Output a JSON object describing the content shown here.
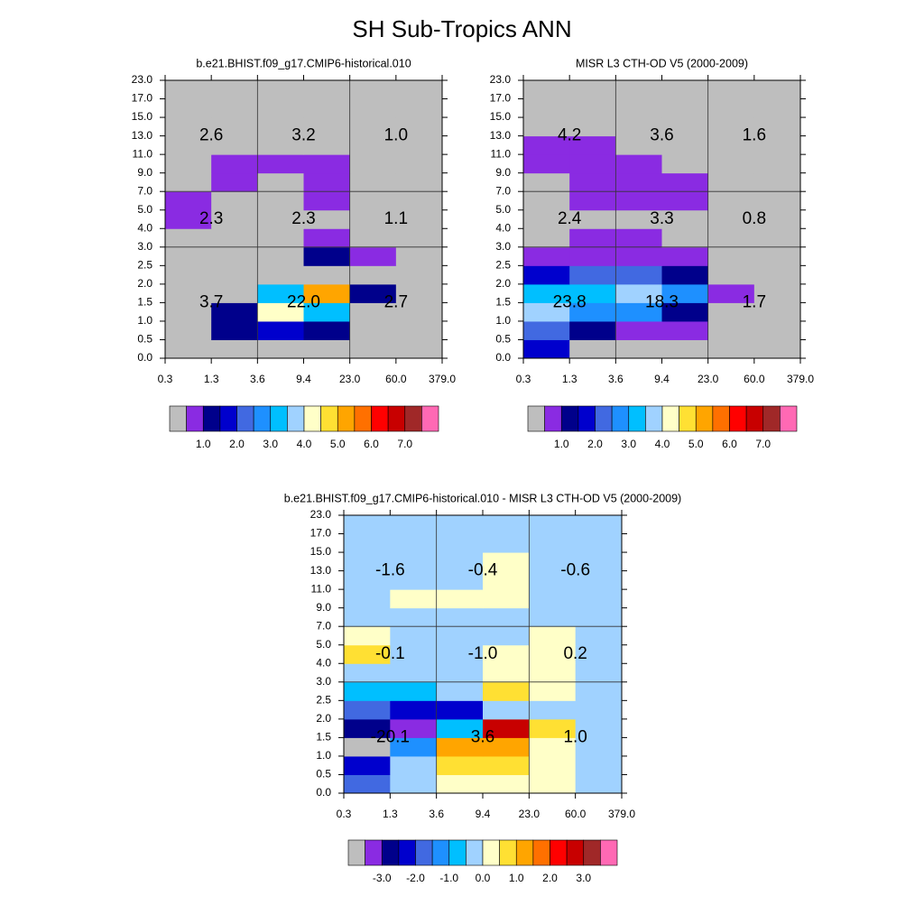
{
  "title": "SH Sub-Tropics ANN",
  "chart_data": [
    {
      "type": "heatmap",
      "title": "b.e21.BHIST.f09_g17.CMIP6-historical.010",
      "x_bins": [
        0.3,
        1.3,
        3.6,
        9.4,
        {
          "value": 23,
          "label": "23.0"
        },
        {
          "value": 60,
          "label": "60.0"
        },
        {
          "value": 379,
          "label": "379.0"
        }
      ],
      "y_bins": [
        {
          "value": 0,
          "label": "0.0"
        },
        0.5,
        {
          "value": 1,
          "label": "1.0"
        },
        1.5,
        {
          "value": 2,
          "label": "2.0"
        },
        2.5,
        {
          "value": 3,
          "label": "3.0"
        },
        {
          "value": 4,
          "label": "4.0"
        },
        {
          "value": 5,
          "label": "5.0"
        },
        {
          "value": 7,
          "label": "7.0"
        },
        {
          "value": 9,
          "label": "9.0"
        },
        {
          "value": 11,
          "label": "11.0"
        },
        {
          "value": 13,
          "label": "13.0"
        },
        {
          "value": 15,
          "label": "15.0"
        },
        {
          "value": 17,
          "label": "17.0"
        },
        {
          "value": 23,
          "label": "23.0"
        }
      ],
      "values": [
        [
          0.2,
          0.2,
          0.2,
          0.2,
          0.2,
          0.2
        ],
        [
          0.2,
          1.2,
          1.7,
          1.2,
          0.2,
          0.2
        ],
        [
          0.2,
          1.2,
          4.2,
          3.2,
          0.2,
          0.2
        ],
        [
          0.2,
          0.2,
          3.2,
          5.2,
          1.2,
          0.2
        ],
        [
          0.2,
          0.2,
          0.2,
          0.2,
          0.2,
          0.2
        ],
        [
          0.2,
          0.2,
          0.2,
          1.2,
          0.7,
          0.2
        ],
        [
          0.2,
          0.2,
          0.2,
          0.7,
          0.2,
          0.2
        ],
        [
          0.7,
          0.2,
          0.2,
          0.2,
          0.2,
          0.2
        ],
        [
          0.7,
          0.2,
          0.2,
          0.7,
          0.2,
          0.2
        ],
        [
          0.2,
          0.7,
          0.2,
          0.7,
          0.2,
          0.2
        ],
        [
          0.2,
          0.7,
          0.7,
          0.7,
          0.2,
          0.2
        ],
        [
          0.2,
          0.2,
          0.2,
          0.2,
          0.2,
          0.2
        ],
        [
          0.2,
          0.2,
          0.2,
          0.2,
          0.2,
          0.2
        ],
        [
          0.2,
          0.2,
          0.2,
          0.2,
          0.2,
          0.2
        ],
        [
          0.2,
          0.2,
          0.2,
          0.2,
          0.2,
          0.2
        ]
      ],
      "totals": [
        [
          "2.6",
          "3.2",
          "1.0"
        ],
        [
          "2.3",
          "2.3",
          "1.1"
        ],
        [
          "3.7",
          "22.0",
          "2.7"
        ]
      ],
      "colorbar": {
        "levels": [
          0.5,
          1,
          1.5,
          2,
          2.5,
          3,
          3.5,
          4,
          4.5,
          5,
          5.5,
          6,
          6.5,
          7,
          7.5
        ],
        "colors": [
          "#bebebe",
          "#8a2be2",
          "#00008b",
          "#0000cd",
          "#4169e1",
          "#1e90ff",
          "#00bfff",
          "#a0d2ff",
          "#ffffc8",
          "#ffe033",
          "#ffa500",
          "#ff7000",
          "#ff0000",
          "#c80000",
          "#a02828",
          "#ff69b4"
        ],
        "ticks": [
          {
            "value": 1,
            "label": "1.0"
          },
          {
            "value": 2,
            "label": "2.0"
          },
          {
            "value": 3,
            "label": "3.0"
          },
          {
            "value": 4,
            "label": "4.0"
          },
          {
            "value": 5,
            "label": "5.0"
          },
          {
            "value": 6,
            "label": "6.0"
          },
          {
            "value": 7,
            "label": "7.0"
          }
        ]
      }
    },
    {
      "type": "heatmap",
      "title": "MISR L3 CTH-OD V5 (2000-2009)",
      "x_bins": [
        0.3,
        1.3,
        3.6,
        9.4,
        {
          "value": 23,
          "label": "23.0"
        },
        {
          "value": 60,
          "label": "60.0"
        },
        {
          "value": 379,
          "label": "379.0"
        }
      ],
      "y_bins": [
        {
          "value": 0,
          "label": "0.0"
        },
        0.5,
        {
          "value": 1,
          "label": "1.0"
        },
        1.5,
        {
          "value": 2,
          "label": "2.0"
        },
        2.5,
        {
          "value": 3,
          "label": "3.0"
        },
        {
          "value": 4,
          "label": "4.0"
        },
        {
          "value": 5,
          "label": "5.0"
        },
        {
          "value": 7,
          "label": "7.0"
        },
        {
          "value": 9,
          "label": "9.0"
        },
        {
          "value": 11,
          "label": "11.0"
        },
        {
          "value": 13,
          "label": "13.0"
        },
        {
          "value": 15,
          "label": "15.0"
        },
        {
          "value": 17,
          "label": "17.0"
        },
        {
          "value": 23,
          "label": "23.0"
        }
      ],
      "values": [
        [
          1.7,
          0.2,
          0.2,
          0.2,
          0.2,
          0.2
        ],
        [
          2.2,
          1.2,
          0.7,
          0.7,
          0.2,
          0.2
        ],
        [
          3.7,
          2.7,
          2.7,
          1.2,
          0.2,
          0.2
        ],
        [
          3.2,
          3.2,
          3.7,
          2.7,
          0.7,
          0.2
        ],
        [
          1.7,
          2.2,
          2.2,
          1.2,
          0.2,
          0.2
        ],
        [
          0.7,
          0.7,
          0.7,
          0.7,
          0.2,
          0.2
        ],
        [
          0.2,
          0.7,
          0.7,
          0.2,
          0.2,
          0.2
        ],
        [
          0.2,
          0.2,
          0.2,
          0.2,
          0.2,
          0.2
        ],
        [
          0.2,
          0.7,
          0.7,
          0.7,
          0.2,
          0.2
        ],
        [
          0.2,
          0.7,
          0.7,
          0.7,
          0.2,
          0.2
        ],
        [
          0.7,
          0.7,
          0.7,
          0.2,
          0.2,
          0.2
        ],
        [
          0.7,
          0.7,
          0.2,
          0.2,
          0.2,
          0.2
        ],
        [
          0.2,
          0.2,
          0.2,
          0.2,
          0.2,
          0.2
        ],
        [
          0.2,
          0.2,
          0.2,
          0.2,
          0.2,
          0.2
        ],
        [
          0.2,
          0.2,
          0.2,
          0.2,
          0.2,
          0.2
        ]
      ],
      "totals": [
        [
          "4.2",
          "3.6",
          "1.6"
        ],
        [
          "2.4",
          "3.3",
          "0.8"
        ],
        [
          "23.8",
          "18.3",
          "1.7"
        ]
      ],
      "colorbar": {
        "levels": [
          0.5,
          1,
          1.5,
          2,
          2.5,
          3,
          3.5,
          4,
          4.5,
          5,
          5.5,
          6,
          6.5,
          7,
          7.5
        ],
        "colors": [
          "#bebebe",
          "#8a2be2",
          "#00008b",
          "#0000cd",
          "#4169e1",
          "#1e90ff",
          "#00bfff",
          "#a0d2ff",
          "#ffffc8",
          "#ffe033",
          "#ffa500",
          "#ff7000",
          "#ff0000",
          "#c80000",
          "#a02828",
          "#ff69b4"
        ],
        "ticks": [
          {
            "value": 1,
            "label": "1.0"
          },
          {
            "value": 2,
            "label": "2.0"
          },
          {
            "value": 3,
            "label": "3.0"
          },
          {
            "value": 4,
            "label": "4.0"
          },
          {
            "value": 5,
            "label": "5.0"
          },
          {
            "value": 6,
            "label": "6.0"
          },
          {
            "value": 7,
            "label": "7.0"
          }
        ]
      }
    },
    {
      "type": "heatmap",
      "title": "b.e21.BHIST.f09_g17.CMIP6-historical.010 - MISR L3 CTH-OD V5 (2000-2009)",
      "x_bins": [
        0.3,
        1.3,
        3.6,
        9.4,
        {
          "value": 23,
          "label": "23.0"
        },
        {
          "value": 60,
          "label": "60.0"
        },
        {
          "value": 379,
          "label": "379.0"
        }
      ],
      "y_bins": [
        {
          "value": 0,
          "label": "0.0"
        },
        0.5,
        {
          "value": 1,
          "label": "1.0"
        },
        1.5,
        {
          "value": 2,
          "label": "2.0"
        },
        2.5,
        {
          "value": 3,
          "label": "3.0"
        },
        {
          "value": 4,
          "label": "4.0"
        },
        {
          "value": 5,
          "label": "5.0"
        },
        {
          "value": 7,
          "label": "7.0"
        },
        {
          "value": 9,
          "label": "9.0"
        },
        {
          "value": 11,
          "label": "11.0"
        },
        {
          "value": 13,
          "label": "13.0"
        },
        {
          "value": 15,
          "label": "15.0"
        },
        {
          "value": 17,
          "label": "17.0"
        },
        {
          "value": 23,
          "label": "23.0"
        }
      ],
      "values": [
        [
          -1.7,
          -0.2,
          0.2,
          0.2,
          0.2,
          -0.2
        ],
        [
          -2.2,
          -0.2,
          0.7,
          0.7,
          0.2,
          -0.2
        ],
        [
          -3.7,
          -1.2,
          1.2,
          1.2,
          0.2,
          -0.2
        ],
        [
          -2.7,
          -3.2,
          -0.7,
          2.7,
          0.7,
          -0.2
        ],
        [
          -1.7,
          -2.2,
          -2.2,
          -0.2,
          -0.2,
          -0.2
        ],
        [
          -0.7,
          -0.7,
          -0.2,
          0.7,
          0.2,
          -0.2
        ],
        [
          -0.2,
          -0.2,
          -0.2,
          0.2,
          0.2,
          -0.2
        ],
        [
          0.7,
          -0.2,
          -0.2,
          0.2,
          0.2,
          -0.2
        ],
        [
          0.2,
          -0.2,
          -0.2,
          -0.2,
          0.2,
          -0.2
        ],
        [
          -0.2,
          -0.2,
          -0.2,
          -0.2,
          -0.2,
          -0.2
        ],
        [
          -0.2,
          0.2,
          0.2,
          0.2,
          -0.2,
          -0.2
        ],
        [
          -0.2,
          -0.2,
          -0.2,
          0.2,
          -0.2,
          -0.2
        ],
        [
          -0.2,
          -0.2,
          -0.2,
          0.2,
          -0.2,
          -0.2
        ],
        [
          -0.2,
          -0.2,
          -0.2,
          -0.2,
          -0.2,
          -0.2
        ],
        [
          -0.2,
          -0.2,
          -0.2,
          -0.2,
          -0.2,
          -0.2
        ]
      ],
      "totals": [
        [
          "-1.6",
          "-0.4",
          "-0.6"
        ],
        [
          "-0.1",
          "-1.0",
          "0.2"
        ],
        [
          "-20.1",
          "3.6",
          "1.0"
        ]
      ],
      "colorbar": {
        "levels": [
          -3.5,
          -3,
          -2.5,
          -2,
          -1.5,
          -1,
          -0.5,
          0,
          0.5,
          1,
          1.5,
          2,
          2.5,
          3,
          3.5
        ],
        "colors": [
          "#bebebe",
          "#8a2be2",
          "#00008b",
          "#0000cd",
          "#4169e1",
          "#1e90ff",
          "#00bfff",
          "#a0d2ff",
          "#ffffc8",
          "#ffe033",
          "#ffa500",
          "#ff7000",
          "#ff0000",
          "#c80000",
          "#a02828",
          "#ff69b4"
        ],
        "ticks": [
          {
            "value": -3,
            "label": "-3.0"
          },
          {
            "value": -2,
            "label": "-2.0"
          },
          {
            "value": -1,
            "label": "-1.0"
          },
          {
            "value": 0,
            "label": "0.0"
          },
          {
            "value": 1,
            "label": "1.0"
          },
          {
            "value": 2,
            "label": "2.0"
          },
          {
            "value": 3,
            "label": "3.0"
          }
        ]
      }
    }
  ]
}
